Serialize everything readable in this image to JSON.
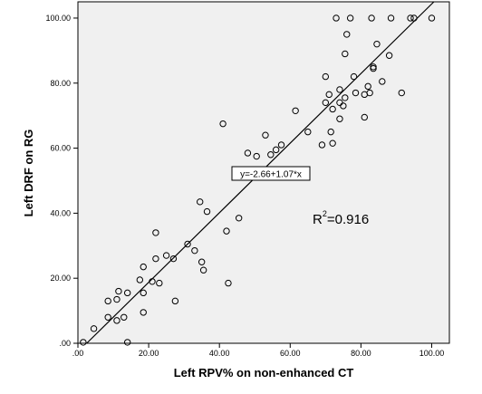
{
  "chart_data": {
    "type": "scatter",
    "xlabel": "Left RPV% on non-enhanced CT",
    "ylabel": "Left DRF on RG",
    "xlim": [
      0,
      105
    ],
    "ylim": [
      0,
      105
    ],
    "x_ticks": [
      ".00",
      "20.00",
      "40.00",
      "60.00",
      "80.00",
      "100.00"
    ],
    "y_ticks": [
      ".00",
      "20.00",
      "40.00",
      "60.00",
      "80.00",
      "100.00"
    ],
    "x_tick_values": [
      0,
      20,
      40,
      60,
      80,
      100
    ],
    "y_tick_values": [
      0,
      20,
      40,
      60,
      80,
      100
    ],
    "fit_line": {
      "label": "y=-2.66+1.07*x",
      "intercept": -2.66,
      "slope": 1.07
    },
    "r_squared": {
      "base": "R",
      "sup": "2",
      "value": "=0.916"
    },
    "grid": false,
    "background": "#f0f0f0",
    "points": [
      [
        1.5,
        0.3
      ],
      [
        4.5,
        4.5
      ],
      [
        8.5,
        8
      ],
      [
        8.5,
        13
      ],
      [
        11,
        13.5
      ],
      [
        11.5,
        16
      ],
      [
        11,
        7
      ],
      [
        13,
        8
      ],
      [
        14,
        15.5
      ],
      [
        14,
        0.3
      ],
      [
        17.5,
        19.5
      ],
      [
        18.5,
        23.5
      ],
      [
        18.5,
        15.5
      ],
      [
        18.5,
        9.5
      ],
      [
        21,
        19
      ],
      [
        22,
        34
      ],
      [
        22,
        26
      ],
      [
        23,
        18.5
      ],
      [
        25,
        27
      ],
      [
        27,
        26
      ],
      [
        27.5,
        13
      ],
      [
        31,
        30.5
      ],
      [
        33,
        28.5
      ],
      [
        34.5,
        43.5
      ],
      [
        35,
        25
      ],
      [
        35.5,
        22.5
      ],
      [
        36.5,
        40.5
      ],
      [
        41,
        67.5
      ],
      [
        42,
        34.5
      ],
      [
        42.5,
        18.5
      ],
      [
        45.5,
        38.5
      ],
      [
        48,
        58.5
      ],
      [
        50.5,
        57.5
      ],
      [
        51,
        51.5
      ],
      [
        53,
        64
      ],
      [
        54.5,
        58
      ],
      [
        56,
        59.5
      ],
      [
        57.5,
        61
      ],
      [
        61.5,
        71.5
      ],
      [
        65,
        65
      ],
      [
        69,
        61
      ],
      [
        70,
        74
      ],
      [
        70,
        82
      ],
      [
        71,
        76.5
      ],
      [
        71.5,
        65
      ],
      [
        72,
        61.5
      ],
      [
        72,
        72
      ],
      [
        73,
        100
      ],
      [
        74,
        69
      ],
      [
        74,
        74
      ],
      [
        74,
        78
      ],
      [
        75,
        73
      ],
      [
        75.5,
        75.5
      ],
      [
        75.5,
        89
      ],
      [
        76,
        95
      ],
      [
        77,
        100
      ],
      [
        78,
        82
      ],
      [
        78.5,
        77
      ],
      [
        81,
        69.5
      ],
      [
        81,
        76.5
      ],
      [
        82,
        79
      ],
      [
        82.5,
        77
      ],
      [
        83,
        100
      ],
      [
        83.5,
        84.5
      ],
      [
        83.5,
        85
      ],
      [
        84.5,
        92
      ],
      [
        86,
        80.5
      ],
      [
        88,
        88.5
      ],
      [
        88.5,
        100
      ],
      [
        91.5,
        77
      ],
      [
        94,
        100
      ],
      [
        95,
        100
      ],
      [
        100,
        100
      ]
    ]
  }
}
